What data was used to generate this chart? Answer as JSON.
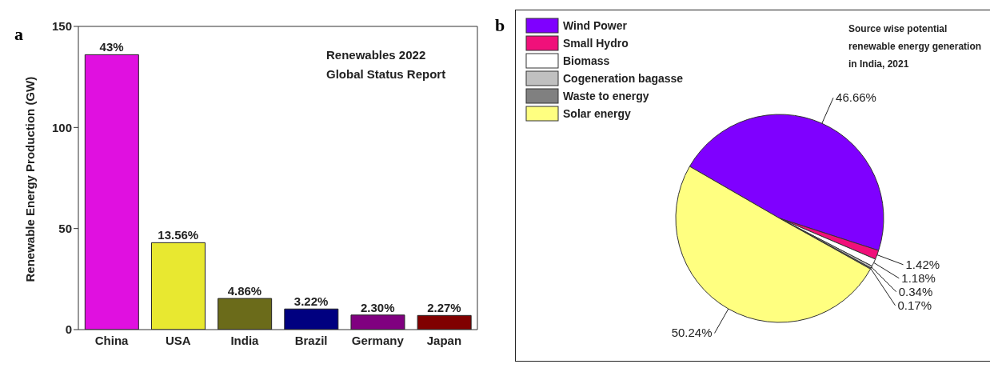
{
  "chart_data": [
    {
      "type": "bar",
      "title": "Renewables 2022 Global Status Report",
      "ylabel": "Renewable Energy Production (GW)",
      "categories": [
        "China",
        "USA",
        "India",
        "Brazil",
        "Germany",
        "Japan"
      ],
      "values": [
        136,
        43,
        15.4,
        10.2,
        7.2,
        7
      ],
      "colors": [
        "#e010e0",
        "#e8e830",
        "#6b6b1a",
        "#000080",
        "#800080",
        "#800000"
      ],
      "annotations": [
        "a",
        {
          "text": "43%",
          "x": "China",
          "y": 136
        },
        {
          "text": "13.56%",
          "x": "USA",
          "y": 43
        },
        {
          "text": "4.86%",
          "x": "India",
          "y": 15.4
        },
        {
          "text": "3.22%",
          "x": "Brazil",
          "y": 10.2
        },
        {
          "text": "2.30%",
          "x": "Germany",
          "y": 7.2
        },
        {
          "text": "2.27%",
          "x": "Japan",
          "y": 7
        }
      ],
      "ylim": [
        0,
        150
      ],
      "yticks": [
        0,
        50,
        100,
        150
      ]
    },
    {
      "type": "pie",
      "title": "Source wise potential renewable energy generation in India, 2021",
      "annotations": [
        "b"
      ],
      "categories": [
        "Wind Power",
        "Small Hydro",
        "Biomass",
        "Cogeneration bagasse",
        "Waste to energy",
        "Solar energy"
      ],
      "values": [
        46.66,
        1.42,
        1.18,
        0.34,
        0.17,
        50.24
      ],
      "colors": [
        "#7f00ff",
        "#f0107a",
        "#ffffff",
        "#c0c0c0",
        "#808080",
        "#ffff80"
      ],
      "value_labels": [
        "46.66%",
        "1.42%",
        "1.18%",
        "0.34%",
        "0.17%",
        "50.24%"
      ],
      "legend": "top left"
    }
  ]
}
